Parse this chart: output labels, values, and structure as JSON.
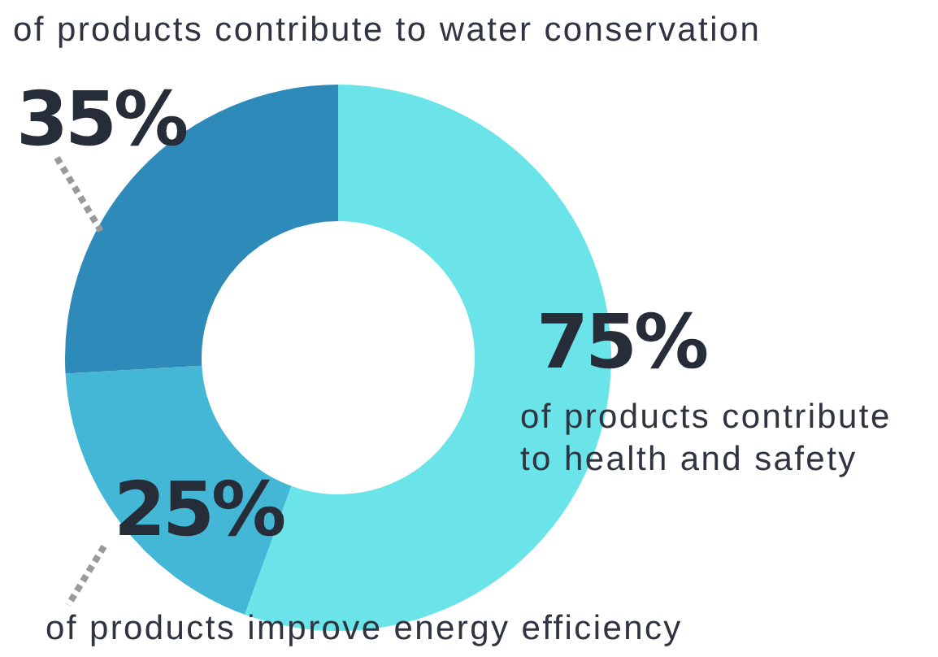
{
  "chart_data": {
    "type": "donut",
    "categories": [
      "of products contribute to health and safety",
      "of products improve energy efficiency",
      "of products contribute to water conservation"
    ],
    "values": [
      75,
      25,
      35
    ],
    "colors": [
      "#6ae4e8",
      "#44b6d6",
      "#2d8ab9"
    ],
    "value_labels": [
      "75%",
      "25%",
      "35%"
    ]
  }
}
